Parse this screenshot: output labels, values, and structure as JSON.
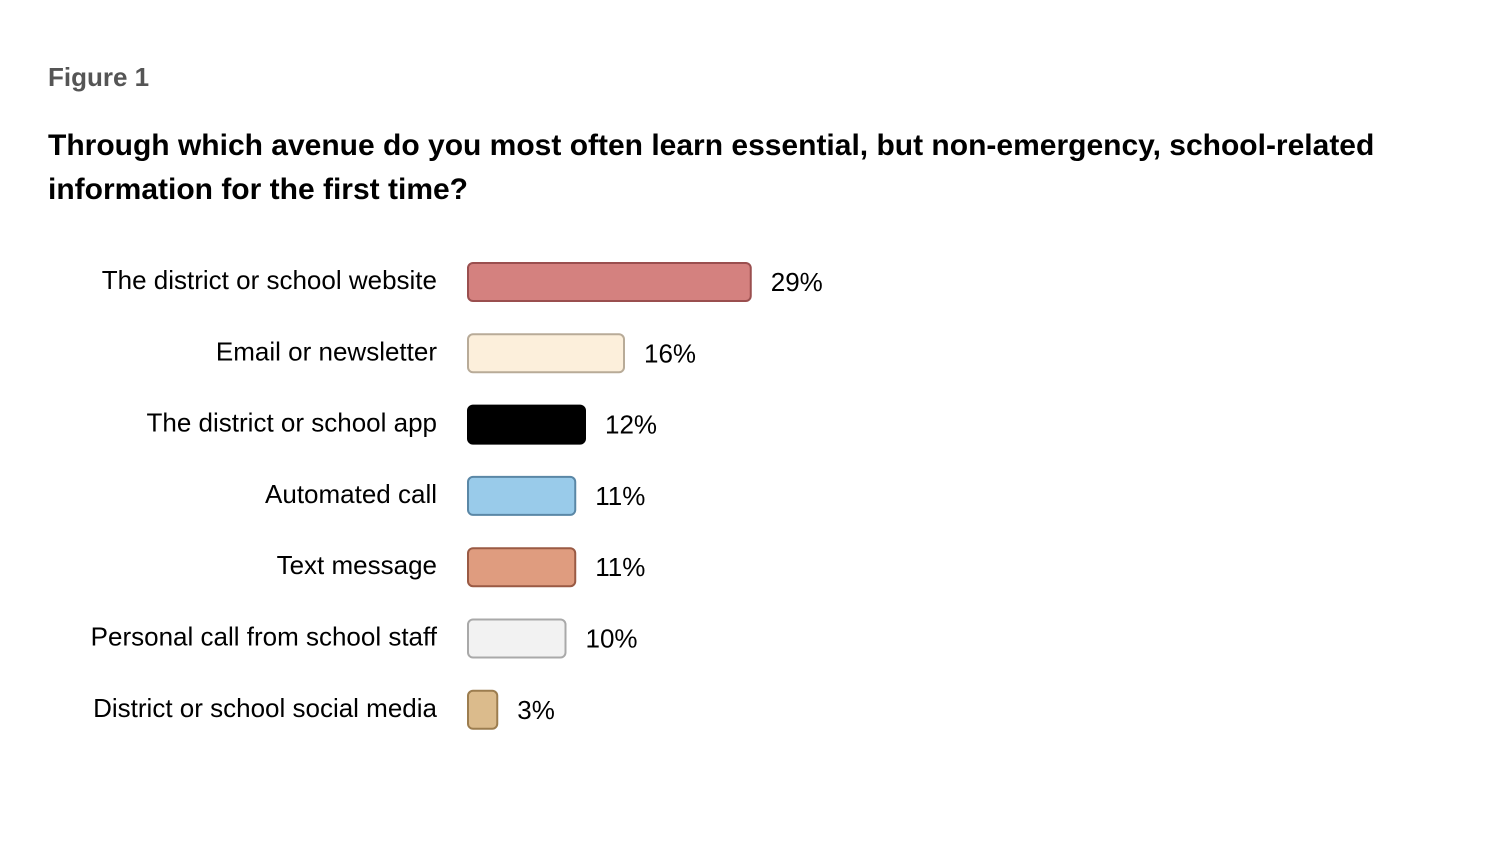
{
  "figure_label": "Figure 1",
  "chart_data": {
    "type": "bar",
    "orientation": "horizontal",
    "title": "Through which avenue do you most often learn essential, but non-emergency, school-related information for the first time?",
    "xlabel": "",
    "ylabel": "",
    "grid": false,
    "xlim": [
      0,
      100
    ],
    "categories": [
      "The district or school website",
      "Email or newsletter",
      "The district or school app",
      "Automated call",
      "Text message",
      "Personal call from school staff",
      "District or school social media"
    ],
    "values": [
      29,
      16,
      12,
      11,
      11,
      10,
      3
    ],
    "value_labels": [
      "29%",
      "16%",
      "12%",
      "11%",
      "11%",
      "10%",
      "3%"
    ],
    "colors": [
      "#d4817f",
      "#fcefdb",
      "#000000",
      "#99cbea",
      "#df9c7f",
      "#f2f2f2",
      "#dbbb8c"
    ],
    "stroke_colors": [
      "#9a4f4f",
      "#b8ab98",
      "#000000",
      "#5a87a6",
      "#9a5a44",
      "#a9a9a9",
      "#9c7d4f"
    ]
  }
}
